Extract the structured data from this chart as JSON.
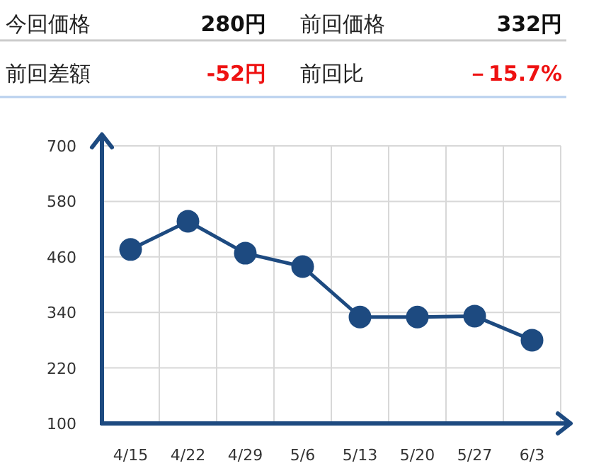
{
  "chart_data": [
    {
      "type": "other",
      "annotations": [
        "今回価格",
        "280円",
        "前回価格",
        "332円",
        "前回差額",
        "-52円",
        "前回比",
        "－15.7%"
      ],
      "colors": [
        "#222222",
        "#111111",
        "#222222",
        "#111111",
        "#222222",
        "#ee1111",
        "#222222",
        "#ee1111"
      ]
    },
    {
      "type": "line",
      "categories": [
        "4/15",
        "4/22",
        "4/29",
        "5/6",
        "5/13",
        "5/20",
        "5/27",
        "6/3"
      ],
      "series": [
        {
          "color": "#1d4a80",
          "values": [
            476,
            537,
            468,
            439,
            330,
            330,
            332,
            280
          ]
        }
      ],
      "ylim": [
        100,
        700
      ],
      "yticks": [
        100,
        220,
        340,
        460,
        580,
        700
      ],
      "grid": true,
      "marker": "circle",
      "line_style": "solid"
    }
  ]
}
